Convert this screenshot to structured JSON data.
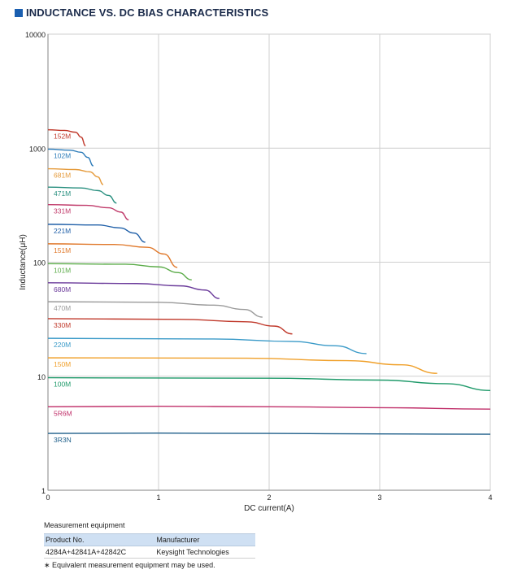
{
  "header": {
    "title": "INDUCTANCE VS. DC BIAS CHARACTERISTICS"
  },
  "colors": {
    "title_square": "#1a5fb0",
    "grid": "#c8c8c8",
    "axis": "#9a9a9a"
  },
  "chart_data": {
    "type": "line",
    "xlabel": "DC current(A)",
    "ylabel": "Inductance(μH)",
    "xlim": [
      0,
      4
    ],
    "ylim": [
      1,
      10000
    ],
    "yscale": "log",
    "grid": true,
    "x_ticks": [
      "0",
      "1",
      "2",
      "3",
      "4"
    ],
    "y_ticks": [
      "1",
      "10",
      "100",
      "1000",
      "10000"
    ],
    "series": [
      {
        "name": "152M",
        "color": "#c0392b",
        "x": [
          0,
          0.15,
          0.25,
          0.3,
          0.34
        ],
        "y": [
          1450,
          1430,
          1380,
          1250,
          1050
        ]
      },
      {
        "name": "102M",
        "color": "#2a7ab8",
        "x": [
          0,
          0.2,
          0.3,
          0.36,
          0.41
        ],
        "y": [
          980,
          960,
          920,
          830,
          700
        ]
      },
      {
        "name": "681M",
        "color": "#e59a3a",
        "x": [
          0,
          0.25,
          0.38,
          0.45,
          0.5
        ],
        "y": [
          660,
          650,
          620,
          560,
          480
        ]
      },
      {
        "name": "471M",
        "color": "#2a9080",
        "x": [
          0,
          0.3,
          0.45,
          0.55,
          0.62
        ],
        "y": [
          455,
          448,
          425,
          385,
          330
        ]
      },
      {
        "name": "331M",
        "color": "#c03a6a",
        "x": [
          0,
          0.35,
          0.55,
          0.66,
          0.73
        ],
        "y": [
          320,
          315,
          300,
          275,
          235
        ]
      },
      {
        "name": "221M",
        "color": "#1f5fa8",
        "x": [
          0,
          0.45,
          0.65,
          0.78,
          0.88
        ],
        "y": [
          215,
          212,
          200,
          180,
          150
        ]
      },
      {
        "name": "151M",
        "color": "#e0782a",
        "x": [
          0,
          0.6,
          0.9,
          1.05,
          1.17
        ],
        "y": [
          145,
          143,
          135,
          118,
          90
        ]
      },
      {
        "name": "101M",
        "color": "#5aab48",
        "x": [
          0,
          0.7,
          1.0,
          1.18,
          1.3
        ],
        "y": [
          97,
          96,
          91,
          81,
          70
        ]
      },
      {
        "name": "680M",
        "color": "#6a3a9a",
        "x": [
          0,
          0.8,
          1.2,
          1.42,
          1.55
        ],
        "y": [
          66,
          65,
          62,
          57,
          48
        ]
      },
      {
        "name": "470M",
        "color": "#9a9a9a",
        "x": [
          0,
          1.0,
          1.5,
          1.78,
          1.94
        ],
        "y": [
          45,
          44.5,
          42,
          38.5,
          33
        ]
      },
      {
        "name": "330M",
        "color": "#c0392b",
        "x": [
          0,
          1.2,
          1.8,
          2.05,
          2.21
        ],
        "y": [
          32,
          31.5,
          30,
          27.5,
          23.5
        ]
      },
      {
        "name": "220M",
        "color": "#3a9ac8",
        "x": [
          0,
          1.5,
          2.2,
          2.6,
          2.88
        ],
        "y": [
          21.5,
          21.2,
          20.2,
          18.5,
          15.8
        ]
      },
      {
        "name": "150M",
        "color": "#f0a02a",
        "x": [
          0,
          1.8,
          2.7,
          3.2,
          3.52
        ],
        "y": [
          14.5,
          14.4,
          13.7,
          12.6,
          10.6
        ]
      },
      {
        "name": "100M",
        "color": "#1f9a6a",
        "x": [
          0,
          2.0,
          3.0,
          3.6,
          4.0
        ],
        "y": [
          9.7,
          9.6,
          9.25,
          8.6,
          7.5
        ]
      },
      {
        "name": "5R6M",
        "color": "#c0306a",
        "x": [
          0,
          1.0,
          2.0,
          3.0,
          4.0
        ],
        "y": [
          5.4,
          5.45,
          5.4,
          5.3,
          5.15
        ]
      },
      {
        "name": "3R3N",
        "color": "#1f5f8a",
        "x": [
          0,
          1.0,
          2.0,
          3.0,
          4.0
        ],
        "y": [
          3.15,
          3.17,
          3.15,
          3.12,
          3.1
        ]
      }
    ]
  },
  "measurement": {
    "heading": "Measurement equipment",
    "col_product": "Product No.",
    "col_manufacturer": "Manufacturer",
    "product": "4284A+42841A+42842C",
    "manufacturer": "Keysight Technologies",
    "note": "∗ Equivalent measurement equipment may be used."
  }
}
